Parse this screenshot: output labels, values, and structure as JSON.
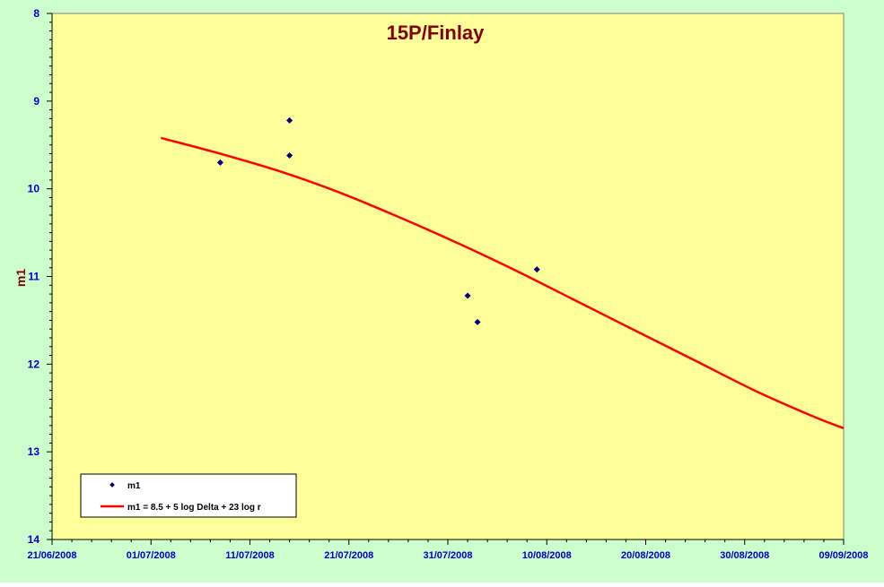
{
  "chart_data": {
    "type": "scatter",
    "title": "15P/Finlay",
    "xlabel": "",
    "ylabel": "m1",
    "x_range": [
      "2008-06-21",
      "2008-09-09"
    ],
    "ylim": [
      8,
      14
    ],
    "y_inverted": true,
    "grid": false,
    "legend_position": "bottom-left",
    "x_tick_labels": [
      "21/06/2008",
      "01/07/2008",
      "11/07/2008",
      "21/07/2008",
      "31/07/2008",
      "10/08/2008",
      "20/08/2008",
      "30/08/2008",
      "09/09/2008"
    ],
    "y_tick_labels": [
      "8",
      "9",
      "10",
      "11",
      "12",
      "13",
      "14"
    ],
    "series": [
      {
        "name": "m1",
        "kind": "scatter",
        "color": "#000080",
        "points": [
          {
            "x": "2008-07-08",
            "y": 9.7
          },
          {
            "x": "2008-07-15",
            "y": 9.22
          },
          {
            "x": "2008-07-15",
            "y": 9.62
          },
          {
            "x": "2008-08-02",
            "y": 11.22
          },
          {
            "x": "2008-08-03",
            "y": 11.52
          },
          {
            "x": "2008-08-09",
            "y": 10.92
          }
        ]
      },
      {
        "name": "m1 = 8.5 + 5 log Delta + 23 log r",
        "kind": "line",
        "color": "#ff0000",
        "points": [
          {
            "x": "2008-07-02",
            "y": 9.42
          },
          {
            "x": "2008-07-08",
            "y": 9.6
          },
          {
            "x": "2008-07-14",
            "y": 9.8
          },
          {
            "x": "2008-07-20",
            "y": 10.04
          },
          {
            "x": "2008-07-26",
            "y": 10.32
          },
          {
            "x": "2008-08-01",
            "y": 10.62
          },
          {
            "x": "2008-08-07",
            "y": 10.94
          },
          {
            "x": "2008-08-13",
            "y": 11.28
          },
          {
            "x": "2008-08-19",
            "y": 11.62
          },
          {
            "x": "2008-08-25",
            "y": 11.96
          },
          {
            "x": "2008-08-31",
            "y": 12.3
          },
          {
            "x": "2008-09-06",
            "y": 12.6
          },
          {
            "x": "2008-09-09",
            "y": 12.73
          }
        ]
      }
    ]
  }
}
